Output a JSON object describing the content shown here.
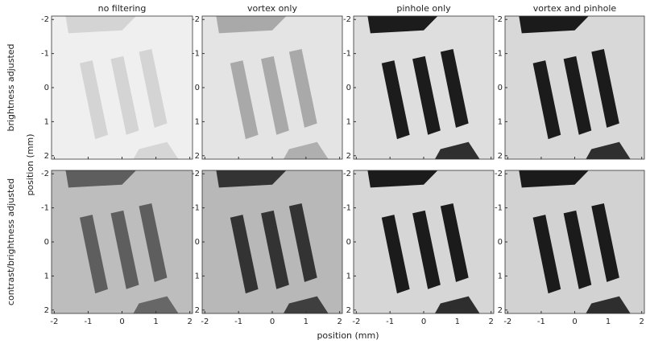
{
  "chart_data": {
    "type": "image-grid",
    "column_titles": [
      "no filtering",
      "vortex only",
      "pinhole only",
      "vortex and pinhole"
    ],
    "row_labels": [
      "brightness adjusted",
      "contrast/brightness adjusted"
    ],
    "xlabel": "position (mm)",
    "ylabel": "position (mm)",
    "xlim": [
      -2.08,
      2.08
    ],
    "ylim": [
      -2.1,
      2.1
    ],
    "y_reversed": true,
    "xticks": [
      -2,
      -1,
      0,
      1,
      2
    ],
    "yticks": [
      -2,
      -1,
      0,
      1,
      2
    ]
  }
}
